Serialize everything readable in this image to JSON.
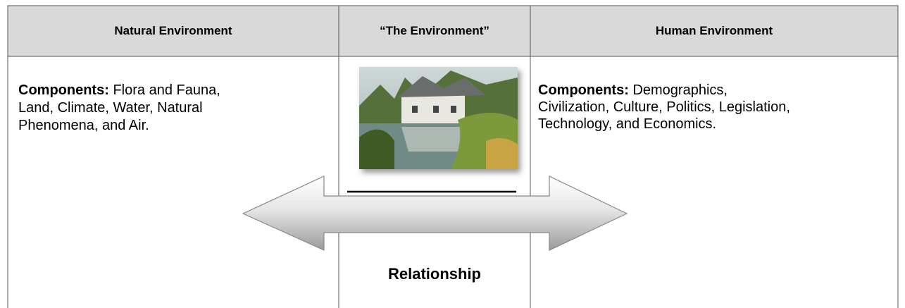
{
  "table": {
    "header": [
      "Natural Environment",
      "“The Environment”",
      "Human Environment"
    ],
    "rows": [
      [
        {
          "label": "Components:",
          "text": "Flora and Fauna, Land, Climate, Water, Natural Phenomena, and Air."
        },
        {
          "caption": "Relationship"
        },
        {
          "label": "Components:",
          "text": "Demographics, Civilization, Culture, Politics, Legislation, Technology, and Economics."
        }
      ]
    ]
  }
}
